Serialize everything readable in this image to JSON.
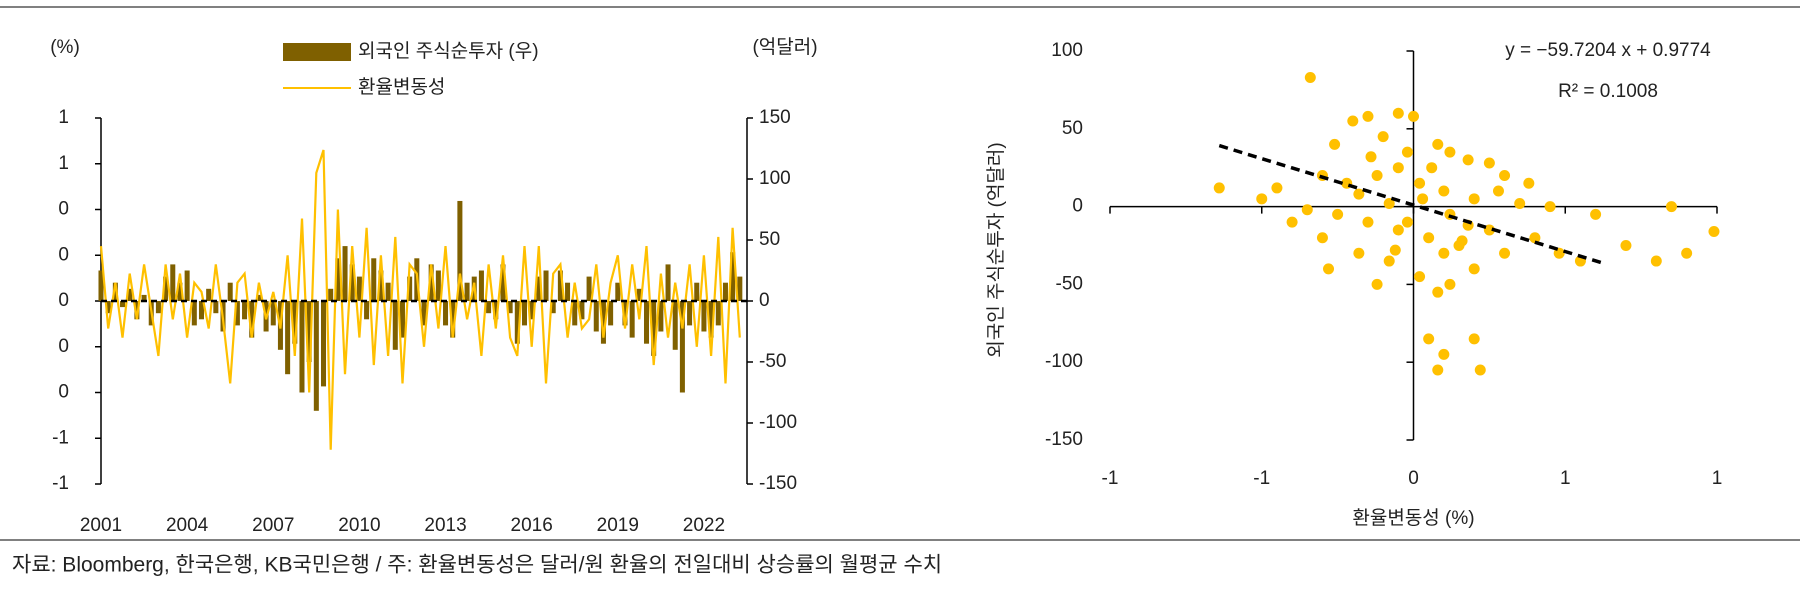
{
  "chart_data": [
    {
      "type": "combo",
      "ylabel": "(%)",
      "y2label": "(억달러)",
      "xlim": [
        2001,
        2023.5
      ],
      "xticks": [
        2001,
        2004,
        2007,
        2010,
        2013,
        2016,
        2019,
        2022
      ],
      "ylim": [
        -0.8,
        0.8
      ],
      "yticks": [
        {
          "value": 0.8,
          "label": "1"
        },
        {
          "value": 0.6,
          "label": "1"
        },
        {
          "value": 0.4,
          "label": "0"
        },
        {
          "value": 0.2,
          "label": "0"
        },
        0,
        {
          "value": -0.2,
          "label": "0"
        },
        {
          "value": -0.4,
          "label": "0"
        },
        {
          "value": -0.6,
          "label": "-1"
        },
        {
          "value": -0.8,
          "label": "-1"
        }
      ],
      "y2lim": [
        -150,
        150
      ],
      "y2ticks": [
        150,
        100,
        50,
        0,
        -50,
        -100,
        -150
      ],
      "x": [
        2001,
        2001.25,
        2001.5,
        2001.75,
        2002,
        2002.25,
        2002.5,
        2002.75,
        2003,
        2003.25,
        2003.5,
        2003.75,
        2004,
        2004.25,
        2004.5,
        2004.75,
        2005,
        2005.25,
        2005.5,
        2005.75,
        2006,
        2006.25,
        2006.5,
        2006.75,
        2007,
        2007.25,
        2007.5,
        2007.75,
        2008,
        2008.25,
        2008.5,
        2008.75,
        2009,
        2009.25,
        2009.5,
        2009.75,
        2010,
        2010.25,
        2010.5,
        2010.75,
        2011,
        2011.25,
        2011.5,
        2011.75,
        2012,
        2012.25,
        2012.5,
        2012.75,
        2013,
        2013.25,
        2013.5,
        2013.75,
        2014,
        2014.25,
        2014.5,
        2014.75,
        2015,
        2015.25,
        2015.5,
        2015.75,
        2016,
        2016.25,
        2016.5,
        2016.75,
        2017,
        2017.25,
        2017.5,
        2017.75,
        2018,
        2018.25,
        2018.5,
        2018.75,
        2019,
        2019.25,
        2019.5,
        2019.75,
        2020,
        2020.25,
        2020.5,
        2020.75,
        2021,
        2021.25,
        2021.5,
        2021.75,
        2022,
        2022.25,
        2022.5,
        2022.75,
        2023,
        2023.25
      ],
      "series": [
        {
          "name": "외국인 주식순투자 (우)",
          "kind": "bar",
          "axis": "y2",
          "color": "#7f6000",
          "values": [
            25,
            -10,
            15,
            -5,
            10,
            -15,
            5,
            -20,
            -10,
            20,
            30,
            15,
            25,
            -20,
            -15,
            10,
            -10,
            -25,
            15,
            -20,
            -15,
            -30,
            5,
            -25,
            -20,
            -40,
            -60,
            -35,
            -75,
            -50,
            -90,
            -70,
            10,
            35,
            45,
            30,
            20,
            -15,
            35,
            25,
            15,
            -40,
            -30,
            20,
            35,
            -20,
            30,
            25,
            -20,
            -30,
            82,
            15,
            20,
            25,
            -10,
            -15,
            30,
            -10,
            -35,
            -20,
            -15,
            20,
            25,
            -10,
            25,
            15,
            -20,
            -15,
            20,
            -25,
            -35,
            -20,
            15,
            -20,
            -30,
            10,
            -35,
            -45,
            -25,
            30,
            -40,
            -75,
            -20,
            15,
            -25,
            -30,
            -20,
            15,
            40,
            20
          ]
        },
        {
          "name": "환율변동성",
          "kind": "line",
          "color": "#ffc000",
          "values": [
            0.24,
            -0.12,
            0.08,
            -0.16,
            0.12,
            -0.08,
            0.16,
            -0.04,
            -0.24,
            0.16,
            -0.08,
            0.12,
            -0.16,
            0.08,
            0.04,
            -0.12,
            0.16,
            -0.08,
            -0.36,
            0.08,
            0.12,
            -0.16,
            0.08,
            -0.08,
            0.04,
            -0.12,
            0.2,
            -0.24,
            0.36,
            -0.4,
            0.56,
            0.66,
            -0.65,
            0.4,
            -0.32,
            0.24,
            -0.16,
            0.32,
            -0.28,
            0.2,
            -0.24,
            0.28,
            -0.36,
            0.16,
            0.12,
            -0.2,
            0.16,
            -0.12,
            0.24,
            -0.16,
            0.12,
            -0.08,
            0.08,
            -0.24,
            0.16,
            -0.12,
            0.2,
            -0.16,
            -0.24,
            0.24,
            -0.2,
            0.24,
            -0.36,
            0.12,
            0.16,
            -0.16,
            0.08,
            -0.12,
            -0.08,
            0.16,
            -0.16,
            0.08,
            0.2,
            -0.12,
            0.16,
            -0.08,
            0.24,
            -0.28,
            0.12,
            -0.16,
            0.08,
            -0.12,
            0.16,
            -0.2,
            0.2,
            -0.24,
            0.28,
            -0.36,
            0.32,
            -0.16
          ]
        }
      ]
    },
    {
      "type": "scatter",
      "color": "#ffc000",
      "xlabel": "환율변동성 (%)",
      "ylabel": "외국인 주식순투자 (억달러)",
      "equation": "y = −59.7204   x + 0.9774",
      "r2": "R² = 0.1008",
      "trendline": {
        "slope": -59.7204,
        "intercept": 0.9774,
        "x": [
          -0.64,
          0.62
        ]
      },
      "xlim": [
        -1,
        1
      ],
      "xticks": [
        -1,
        {
          "value": -0.5,
          "label": "-1"
        },
        0,
        {
          "value": 0.5,
          "label": "1"
        },
        1
      ],
      "ylim": [
        -150,
        100
      ],
      "yticks": [
        100,
        50,
        0,
        -50,
        -100,
        -150
      ],
      "x": [
        -0.64,
        -0.45,
        -0.34,
        -0.26,
        -0.2,
        -0.15,
        -0.1,
        -0.05,
        0,
        0.08,
        0.12,
        0.18,
        0.25,
        0.3,
        -0.3,
        -0.22,
        -0.12,
        -0.05,
        0.02,
        0.1,
        0.2,
        0.35,
        0.45,
        0.6,
        0.7,
        0.8,
        0.9,
        0.99,
        0.85,
        0.48,
        0.4,
        0.3,
        0.15,
        0.05,
        -0.05,
        -0.15,
        -0.25,
        -0.35,
        -0.5,
        -0.28,
        -0.18,
        -0.08,
        0.02,
        0.08,
        0.12,
        0.2,
        -0.12,
        0.05,
        0.1,
        0.2,
        0.22,
        0.08,
        -0.02,
        0.03,
        -0.08,
        0.12,
        0.18,
        -0.18,
        0.25,
        -0.3,
        0.38,
        -0.4,
        0.55,
        0.28,
        -0.02,
        0.06,
        -0.14,
        0.16,
        -0.06,
        0.1
      ],
      "values": [
        12,
        12,
        83,
        40,
        55,
        58,
        45,
        60,
        58,
        40,
        35,
        30,
        28,
        20,
        20,
        15,
        20,
        25,
        15,
        10,
        5,
        2,
        0,
        -5,
        -25,
        -35,
        -30,
        -16,
        0,
        -30,
        -20,
        -30,
        -25,
        -20,
        -15,
        -10,
        -5,
        -2,
        5,
        -40,
        -30,
        -35,
        -45,
        -55,
        -50,
        -40,
        -50,
        -85,
        -95,
        -85,
        -105,
        -105,
        -10,
        5,
        2,
        -5,
        -12,
        8,
        -15,
        -20,
        15,
        -10,
        -35,
        10,
        35,
        25,
        32,
        -22,
        -28,
        -30
      ]
    }
  ],
  "footer": "자료: Bloomberg, 한국은행, KB국민은행 / 주: 환율변동성은 달러/원 환율의 전일대비 상승률의 월평균 수치"
}
